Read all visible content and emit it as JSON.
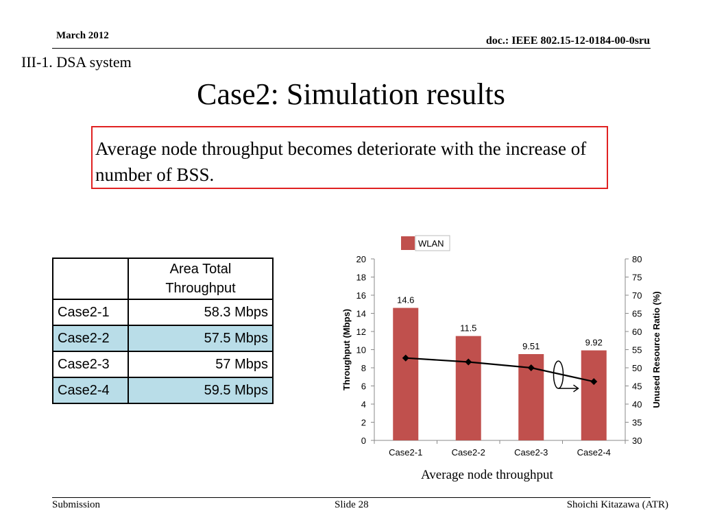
{
  "header": {
    "date": "March 2012",
    "doc": "doc.: IEEE 802.15-12-0184-00-0sru"
  },
  "section": "III-1. DSA system",
  "title": "Case2: Simulation results",
  "callout": "Average node throughput becomes deteriorate with the increase of number of BSS.",
  "table": {
    "header": [
      "",
      "Area Total Throughput"
    ],
    "rows": [
      {
        "case": "Case2-1",
        "value": "58.3 Mbps",
        "highlight": false
      },
      {
        "case": "Case2-2",
        "value": "57.5 Mbps",
        "highlight": true
      },
      {
        "case": "Case2-3",
        "value": "57 Mbps",
        "highlight": false
      },
      {
        "case": "Case2-4",
        "value": "59.5 Mbps",
        "highlight": true
      }
    ],
    "highlight_color": "#b9dde8"
  },
  "chart_data": {
    "type": "bar",
    "categories": [
      "Case2-1",
      "Case2-2",
      "Case2-3",
      "Case2-4"
    ],
    "series": [
      {
        "name": "WLAN",
        "type": "bar",
        "axis": "left",
        "values": [
          14.6,
          11.5,
          9.51,
          9.92
        ],
        "color": "#c0504d",
        "labels": [
          "14.6",
          "11.5",
          "9.51",
          "9.92"
        ]
      },
      {
        "type": "line",
        "axis": "right",
        "values": [
          52.7,
          51.6,
          50.0,
          46.2
        ],
        "color": "#000000",
        "marker": "diamond"
      }
    ],
    "ylabel": "Throughput  (Mbps)",
    "ylim": [
      0,
      20
    ],
    "yticks": [
      0,
      2,
      4,
      6,
      8,
      10,
      12,
      14,
      16,
      18,
      20
    ],
    "y2label": "Unused Resource Ratio (%)",
    "y2lim": [
      30,
      80
    ],
    "y2ticks": [
      30,
      35,
      40,
      45,
      50,
      55,
      60,
      65,
      70,
      75,
      80
    ],
    "legend": "top-left",
    "grid": false
  },
  "caption": "Average node throughput",
  "footer": {
    "left": "Submission",
    "mid": "Slide 28",
    "right": "Shoichi Kitazawa (ATR)"
  }
}
